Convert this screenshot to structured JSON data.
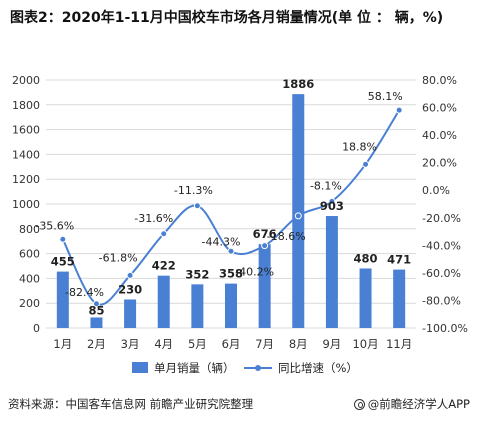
{
  "title": "图表2：2020年1-11月中国校车市场各月销量情况(单 位 ： 辆，%)",
  "source": "资料来源：中国客车信息网 前瞻产业研究院整理",
  "brand": "@前瞻经济学人APP",
  "colors": {
    "bar": "#4A80D4",
    "line": "#4A80D4",
    "grid": "#d9d9d9"
  },
  "chart_data": {
    "type": "bar",
    "categories": [
      "1月",
      "2月",
      "3月",
      "4月",
      "5月",
      "6月",
      "7月",
      "8月",
      "9月",
      "10月",
      "11月"
    ],
    "series": [
      {
        "name": "单月销量（辆）",
        "type": "bar",
        "axis": "left",
        "values": [
          455,
          85,
          230,
          422,
          352,
          358,
          676,
          1886,
          903,
          480,
          471
        ],
        "labels": [
          "455",
          "85",
          "230",
          "422",
          "352",
          "358",
          "676",
          "1886",
          "903",
          "480",
          "471"
        ]
      },
      {
        "name": "同比增速（%）",
        "type": "line",
        "axis": "right",
        "values": [
          -35.6,
          -82.4,
          -61.8,
          -31.6,
          -11.3,
          -44.3,
          -40.2,
          -18.6,
          -8.1,
          18.8,
          58.1
        ],
        "labels": [
          "-35.6%",
          "-82.4%",
          "-61.8%",
          "-31.6%",
          "-11.3%",
          "-44.3%",
          "-40.2%",
          "-18.6%",
          "-8.1%",
          "18.8%",
          "58.1%"
        ]
      }
    ],
    "y_left": {
      "min": 0,
      "max": 2000,
      "ticks": [
        0,
        200,
        400,
        600,
        800,
        1000,
        1200,
        1400,
        1600,
        1800,
        2000
      ]
    },
    "y_right": {
      "min": -100,
      "max": 80,
      "ticks": [
        "-100.0%",
        "-80.0%",
        "-60.0%",
        "-40.0%",
        "-20.0%",
        "0.0%",
        "20.0%",
        "40.0%",
        "60.0%",
        "80.0%"
      ]
    },
    "legend_position": "bottom",
    "grid": true
  }
}
